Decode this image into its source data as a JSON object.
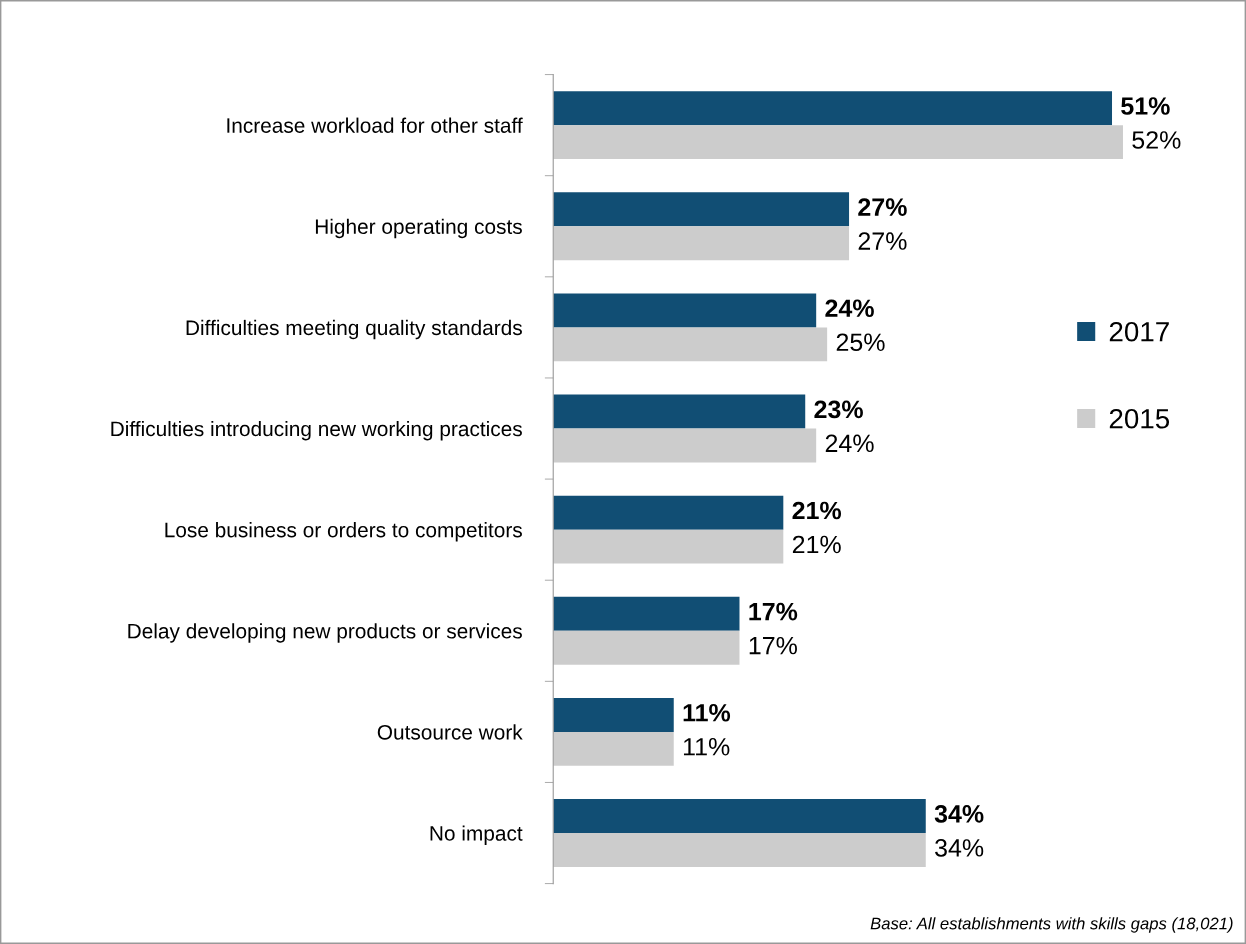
{
  "chart_data": {
    "type": "bar",
    "orientation": "horizontal",
    "categories": [
      "Increase workload for other staff",
      "Higher operating costs",
      "Difficulties meeting quality standards",
      "Difficulties introducing new working practices",
      "Lose business or orders to competitors",
      "Delay developing new products or services",
      "Outsource work",
      "No impact"
    ],
    "series": [
      {
        "name": "2017",
        "color": "#114e74",
        "values": [
          51,
          27,
          24,
          23,
          21,
          17,
          11,
          34
        ],
        "value_labels": [
          "51%",
          "27%",
          "24%",
          "23%",
          "21%",
          "17%",
          "11%",
          "34%"
        ]
      },
      {
        "name": "2015",
        "color": "#cccccc",
        "values": [
          52,
          27,
          25,
          24,
          21,
          17,
          11,
          34
        ],
        "value_labels": [
          "52%",
          "27%",
          "25%",
          "24%",
          "21%",
          "17%",
          "11%",
          "34%"
        ]
      }
    ],
    "legend": "right",
    "grid": false,
    "annotations": [
      "Base: All establishments with skills gaps (18,021)"
    ]
  }
}
